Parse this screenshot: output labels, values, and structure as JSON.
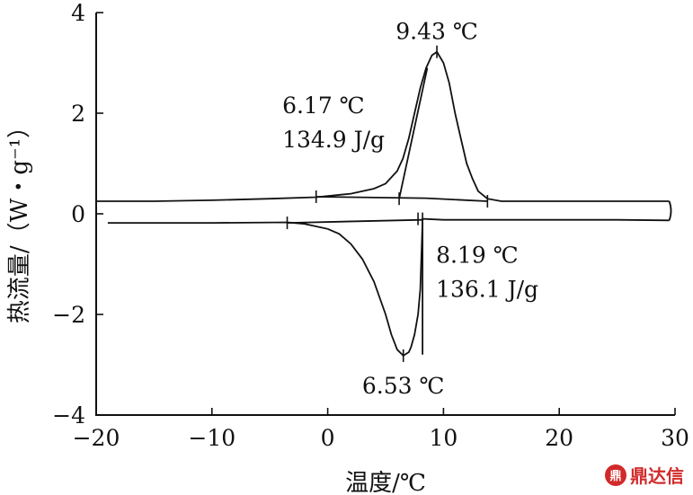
{
  "chart_data": {
    "type": "line",
    "xlabel": "温度/℃",
    "ylabel": "热流量/（W・g⁻¹）",
    "xlim": [
      -20,
      30
    ],
    "ylim": [
      -4,
      4
    ],
    "xticks": [
      -20,
      -10,
      0,
      10,
      20,
      30
    ],
    "yticks": [
      -4,
      -2,
      0,
      2,
      4
    ],
    "xtick_labels": [
      "−20",
      "−10",
      "0",
      "10",
      "20",
      "30"
    ],
    "ytick_labels": [
      "−4",
      "−2",
      "0",
      "2",
      "4"
    ],
    "grid": false,
    "series": [
      {
        "x": [
          -20,
          -15,
          -10,
          -5,
          -1,
          2,
          4,
          5,
          6,
          6.5,
          7,
          7.5,
          8,
          8.5,
          9,
          9.43,
          10,
          10.5,
          11,
          11.5,
          12,
          12.5,
          13,
          13.8,
          15,
          20,
          25,
          29.5
        ],
        "values": [
          0.25,
          0.25,
          0.27,
          0.3,
          0.33,
          0.4,
          0.5,
          0.6,
          0.85,
          1.1,
          1.5,
          2.0,
          2.5,
          2.9,
          3.15,
          3.22,
          3.0,
          2.6,
          2.0,
          1.5,
          1.0,
          0.7,
          0.45,
          0.3,
          0.25,
          0.25,
          0.25,
          0.25
        ]
      },
      {
        "x": [
          29.5,
          25,
          20,
          15,
          10,
          8.2,
          8,
          7.8,
          7.5,
          7.2,
          7,
          6.53,
          6,
          5.5,
          5,
          4,
          3,
          2,
          1,
          0,
          -1,
          -2,
          -3.5,
          -10,
          -19
        ],
        "values": [
          -0.13,
          -0.12,
          -0.12,
          -0.12,
          -0.12,
          -0.1,
          -1.5,
          -2.0,
          -2.4,
          -2.65,
          -2.75,
          -2.82,
          -2.7,
          -2.4,
          -2.0,
          -1.35,
          -0.9,
          -0.6,
          -0.4,
          -0.3,
          -0.25,
          -0.2,
          -0.17,
          -0.18,
          -0.18
        ]
      }
    ],
    "annotations": [
      {
        "text": "9.43 ℃",
        "x": 9.43,
        "y": 3.22
      },
      {
        "lines": [
          "6.17 ℃",
          "134.9 J/g"
        ],
        "x": 6.17,
        "y": 0.3
      },
      {
        "lines": [
          "8.19 ℃",
          "136.1 J/g"
        ],
        "x": 8.19,
        "y": -0.12
      },
      {
        "text": "6.53 ℃",
        "x": 6.53,
        "y": -2.82
      }
    ],
    "baselines": [
      {
        "x": [
          -1,
          8.5,
          13.8
        ],
        "values": [
          0.34,
          0.31,
          0.25
        ]
      },
      {
        "x": [
          -3.5,
          8.2
        ],
        "values": [
          -0.18,
          -0.12
        ]
      }
    ],
    "tangents": [
      {
        "x": [
          6.17,
          8.6
        ],
        "values": [
          0.3,
          2.9
        ]
      },
      {
        "x": [
          8.19,
          8.19
        ],
        "values": [
          -0.1,
          -2.8
        ]
      }
    ],
    "markers": [
      {
        "x": -1,
        "y": 0.34
      },
      {
        "x": 6.17,
        "y": 0.3
      },
      {
        "x": 9.43,
        "y": 3.22
      },
      {
        "x": 13.8,
        "y": 0.25
      },
      {
        "x": -3.5,
        "y": -0.18
      },
      {
        "x": 6.53,
        "y": -2.82
      },
      {
        "x": 7.8,
        "y": -0.1
      },
      {
        "x": 8.19,
        "y": -0.1
      }
    ]
  },
  "watermark": {
    "text": "鼎达信",
    "logo": "鼎"
  }
}
